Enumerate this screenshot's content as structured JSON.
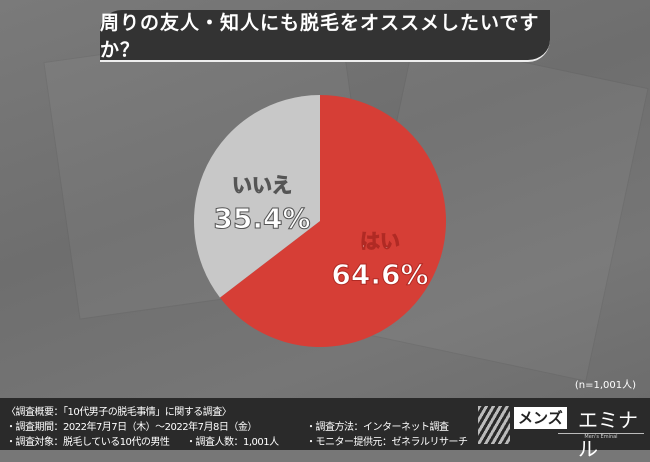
{
  "title": "周りの友人・知人にも脱毛をオススメしたいですか？",
  "sample_note": "(n=1,001人)",
  "chart_data": {
    "type": "pie",
    "title": "周りの友人・知人にも脱毛をオススメしたいですか？",
    "categories": [
      "はい",
      "いいえ"
    ],
    "values": [
      64.6,
      35.4
    ],
    "labels": [
      "64.6%",
      "35.4%"
    ],
    "colors": [
      "#d63e36",
      "#c8c8c8"
    ],
    "start": "12 o'clock, clockwise"
  },
  "footer": {
    "overview": "〈調査概要：「10代男子の脱毛事情」に関する調査〉",
    "period": "・調査期間：2022年7月7日（木）～2022年7月8日（金）",
    "target": "・調査対象：脱毛している10代の男性",
    "count": "・調査人数：1,001人",
    "method": "・調査方法：インターネット調査",
    "provider": "・モニター提供元：ゼネラルリサーチ"
  },
  "logo": {
    "box": "メンズ",
    "name": "エミナル",
    "sub": "Men's Eminal"
  }
}
